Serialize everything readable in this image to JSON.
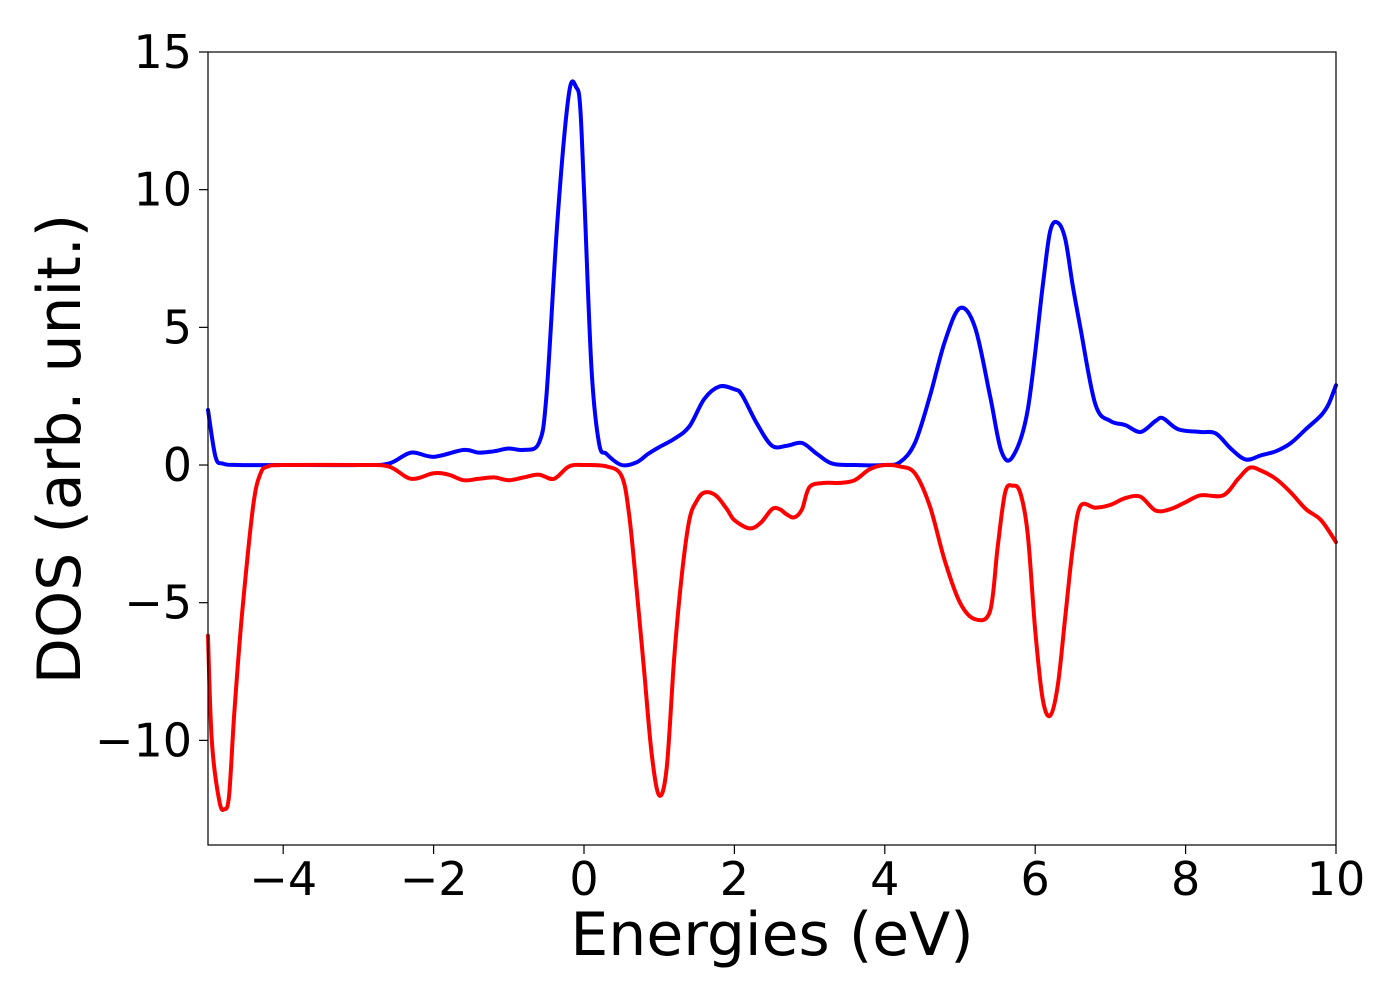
{
  "chart_data": {
    "type": "line",
    "title": "",
    "xlabel": "Energies (eV)",
    "ylabel": "DOS (arb. unit.)",
    "xlim": [
      -5,
      10
    ],
    "ylim": [
      -13.8,
      15
    ],
    "xticks": [
      -4,
      -2,
      0,
      2,
      4,
      6,
      8,
      10
    ],
    "xtick_labels": [
      "−4",
      "−2",
      "0",
      "2",
      "4",
      "6",
      "8",
      "10"
    ],
    "yticks": [
      -10,
      -5,
      0,
      5,
      10,
      15
    ],
    "ytick_labels": [
      "−10",
      "−5",
      "0",
      "5",
      "10",
      "15"
    ],
    "grid": false,
    "legend": "none",
    "series": [
      {
        "color": "#0000ff",
        "x": [
          -5.0,
          -4.9,
          -4.8,
          -4.6,
          -4.0,
          -3.0,
          -2.6,
          -2.3,
          -2.0,
          -1.6,
          -1.4,
          -1.2,
          -1.0,
          -0.8,
          -0.6,
          -0.5,
          -0.35,
          -0.2,
          -0.1,
          -0.05,
          0.0,
          0.1,
          0.2,
          0.3,
          0.5,
          0.7,
          0.85,
          1.0,
          1.2,
          1.4,
          1.6,
          1.8,
          2.0,
          2.1,
          2.3,
          2.5,
          2.7,
          2.9,
          3.1,
          3.3,
          3.6,
          4.0,
          4.2,
          4.4,
          4.6,
          4.8,
          5.0,
          5.2,
          5.4,
          5.55,
          5.7,
          5.9,
          6.1,
          6.2,
          6.3,
          6.4,
          6.5,
          6.6,
          6.8,
          7.0,
          7.2,
          7.4,
          7.6,
          7.7,
          7.9,
          8.2,
          8.4,
          8.6,
          8.8,
          9.0,
          9.2,
          9.4,
          9.6,
          9.8,
          9.9,
          10.0
        ],
        "y": [
          2.0,
          0.3,
          0.05,
          0.0,
          0.0,
          0.0,
          0.05,
          0.45,
          0.3,
          0.55,
          0.45,
          0.5,
          0.6,
          0.55,
          0.8,
          2.5,
          9.0,
          13.5,
          13.7,
          13.0,
          10.0,
          3.5,
          0.8,
          0.4,
          0.0,
          0.1,
          0.4,
          0.65,
          0.95,
          1.4,
          2.4,
          2.85,
          2.75,
          2.55,
          1.5,
          0.7,
          0.7,
          0.8,
          0.4,
          0.05,
          0.0,
          0.0,
          0.1,
          0.8,
          2.5,
          4.5,
          5.7,
          5.0,
          2.5,
          0.5,
          0.3,
          2.0,
          6.5,
          8.5,
          8.8,
          8.2,
          6.5,
          5.0,
          2.2,
          1.6,
          1.45,
          1.2,
          1.6,
          1.7,
          1.3,
          1.2,
          1.15,
          0.6,
          0.2,
          0.35,
          0.5,
          0.8,
          1.3,
          1.8,
          2.2,
          2.9
        ]
      },
      {
        "color": "#ff0000",
        "x": [
          -5.0,
          -4.95,
          -4.85,
          -4.78,
          -4.72,
          -4.65,
          -4.55,
          -4.4,
          -4.3,
          -4.2,
          -4.0,
          -3.0,
          -2.6,
          -2.3,
          -2.0,
          -1.8,
          -1.6,
          -1.4,
          -1.2,
          -1.0,
          -0.8,
          -0.6,
          -0.4,
          -0.2,
          0.0,
          0.3,
          0.5,
          0.6,
          0.7,
          0.8,
          0.9,
          1.0,
          1.1,
          1.2,
          1.3,
          1.4,
          1.5,
          1.6,
          1.75,
          1.9,
          2.0,
          2.2,
          2.35,
          2.5,
          2.6,
          2.7,
          2.8,
          2.9,
          3.0,
          3.2,
          3.4,
          3.6,
          3.8,
          4.0,
          4.2,
          4.4,
          4.6,
          4.8,
          5.0,
          5.2,
          5.4,
          5.5,
          5.6,
          5.7,
          5.8,
          5.9,
          6.0,
          6.1,
          6.2,
          6.3,
          6.4,
          6.5,
          6.6,
          6.8,
          7.0,
          7.2,
          7.4,
          7.6,
          7.8,
          8.0,
          8.2,
          8.5,
          8.7,
          8.85,
          9.0,
          9.2,
          9.4,
          9.6,
          9.8,
          10.0
        ],
        "y": [
          -6.2,
          -10.0,
          -12.2,
          -12.5,
          -12.0,
          -9.0,
          -5.5,
          -1.5,
          -0.3,
          -0.05,
          0.0,
          0.0,
          -0.05,
          -0.5,
          -0.3,
          -0.35,
          -0.55,
          -0.5,
          -0.45,
          -0.55,
          -0.45,
          -0.35,
          -0.5,
          -0.05,
          0.0,
          -0.05,
          -0.4,
          -1.8,
          -4.5,
          -7.5,
          -10.5,
          -12.0,
          -11.0,
          -7.0,
          -4.0,
          -2.0,
          -1.3,
          -1.0,
          -1.1,
          -1.6,
          -2.0,
          -2.3,
          -2.1,
          -1.6,
          -1.6,
          -1.8,
          -1.9,
          -1.6,
          -0.8,
          -0.65,
          -0.65,
          -0.55,
          -0.15,
          0.0,
          -0.05,
          -0.3,
          -1.5,
          -3.5,
          -5.0,
          -5.6,
          -5.3,
          -3.0,
          -1.0,
          -0.75,
          -1.0,
          -2.5,
          -6.0,
          -8.5,
          -9.1,
          -8.0,
          -5.5,
          -3.0,
          -1.5,
          -1.55,
          -1.45,
          -1.2,
          -1.15,
          -1.65,
          -1.6,
          -1.35,
          -1.1,
          -1.1,
          -0.5,
          -0.1,
          -0.2,
          -0.5,
          -1.0,
          -1.6,
          -2.0,
          -2.8
        ]
      }
    ]
  }
}
